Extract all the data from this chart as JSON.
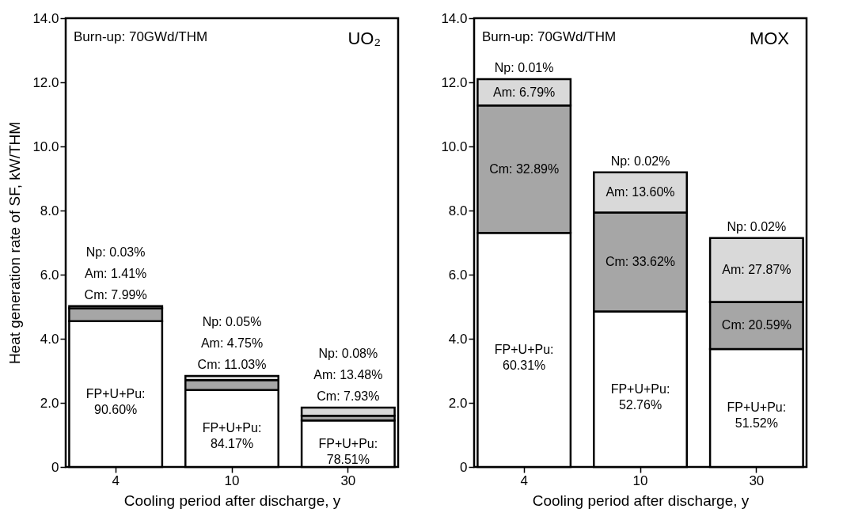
{
  "chart_data": [
    {
      "type": "bar",
      "stacked": true,
      "xlabel": "Cooling period after discharge, y",
      "ylabel": "Heat generation rate of SF, kW/THM",
      "categories": [
        "4",
        "10",
        "30"
      ],
      "annotations": [
        "Burn-up: 70GWd/THM",
        "UO₂",
        "FP+U+Pu: 90.60%",
        "Cm: 7.99%",
        "Am: 1.41%",
        "Np: 0.03%",
        "FP+U+Pu: 84.17%",
        "Cm: 11.03%",
        "Am: 4.75%",
        "Np: 0.05%",
        "FP+U+Pu: 78.51%",
        "Cm: 7.93%",
        "Am: 13.48%",
        "Np: 0.08%"
      ],
      "ylim": [
        0,
        14
      ],
      "yticks": [
        0,
        {
          "value": 2,
          "label": "2.0"
        },
        {
          "value": 4,
          "label": "4.0"
        },
        {
          "value": 6,
          "label": "6.0"
        },
        {
          "value": 8,
          "label": "8.0"
        },
        {
          "value": 10,
          "label": "10.0"
        },
        {
          "value": 12,
          "label": "12.0"
        },
        {
          "value": 14,
          "label": "14.0"
        }
      ],
      "series": [
        {
          "color": "#ffffff",
          "values": [
            4.55,
            2.4,
            1.45
          ]
        },
        {
          "color": "#a6a6a6",
          "values": [
            0.4,
            0.31,
            0.15
          ]
        },
        {
          "color": "#d9d9d9",
          "values": [
            0.07,
            0.13,
            0.25
          ]
        }
      ]
    },
    {
      "type": "bar",
      "stacked": true,
      "xlabel": "Cooling period after discharge, y",
      "categories": [
        "4",
        "10",
        "30"
      ],
      "annotations": [
        "Burn-up: 70GWd/THM",
        "MOX",
        "FP+U+Pu: 60.31%",
        "Cm: 32.89%",
        "Am: 6.79%",
        "Np: 0.01%",
        "FP+U+Pu: 52.76%",
        "Cm: 33.62%",
        "Am: 13.60%",
        "Np: 0.02%",
        "FP+U+Pu: 51.52%",
        "Cm: 20.59%",
        "Am: 27.87%",
        "Np: 0.02%"
      ],
      "ylim": [
        0,
        14
      ],
      "yticks": [
        0,
        {
          "value": 2,
          "label": "2.0"
        },
        {
          "value": 4,
          "label": "4.0"
        },
        {
          "value": 6,
          "label": "6.0"
        },
        {
          "value": 8,
          "label": "8.0"
        },
        {
          "value": 10,
          "label": "10.0"
        },
        {
          "value": 12,
          "label": "12.0"
        },
        {
          "value": 14,
          "label": "14.0"
        }
      ],
      "series": [
        {
          "color": "#ffffff",
          "values": [
            7.3,
            4.85,
            3.68
          ]
        },
        {
          "color": "#a6a6a6",
          "values": [
            3.98,
            3.09,
            1.47
          ]
        },
        {
          "color": "#d9d9d9",
          "values": [
            0.82,
            1.25,
            1.99
          ]
        }
      ]
    }
  ]
}
